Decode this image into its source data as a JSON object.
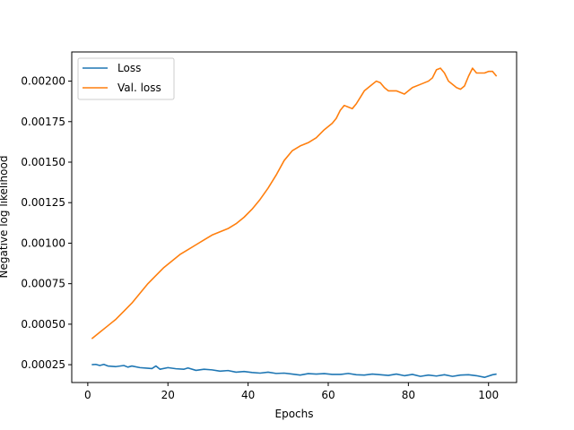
{
  "chart_data": {
    "type": "line",
    "title": "",
    "xlabel": "Epochs",
    "ylabel": "Negative log likelihood",
    "xlim": [
      -4,
      107
    ],
    "ylim": [
      0.00014,
      0.00218
    ],
    "xticks": [
      0,
      20,
      40,
      60,
      80,
      100
    ],
    "xtick_labels": [
      "0",
      "20",
      "40",
      "60",
      "80",
      "100"
    ],
    "yticks": [
      0.00025,
      0.0005,
      0.00075,
      0.001,
      0.00125,
      0.0015,
      0.00175,
      0.002
    ],
    "ytick_labels": [
      "0.00025",
      "0.00050",
      "0.00075",
      "0.00100",
      "0.00125",
      "0.00150",
      "0.00175",
      "0.00200"
    ],
    "grid": false,
    "legend": "top-left",
    "series": [
      {
        "name": "Loss",
        "color": "#1f77b4",
        "points": [
          [
            1,
            0.00025
          ],
          [
            2,
            0.000252
          ],
          [
            3,
            0.000245
          ],
          [
            4,
            0.000252
          ],
          [
            5,
            0.000242
          ],
          [
            7,
            0.000238
          ],
          [
            9,
            0.000245
          ],
          [
            10,
            0.000235
          ],
          [
            11,
            0.000242
          ],
          [
            13,
            0.000232
          ],
          [
            15,
            0.000228
          ],
          [
            16,
            0.000226
          ],
          [
            17,
            0.000242
          ],
          [
            18,
            0.000222
          ],
          [
            20,
            0.000232
          ],
          [
            22,
            0.000225
          ],
          [
            24,
            0.000222
          ],
          [
            25,
            0.00023
          ],
          [
            27,
            0.000215
          ],
          [
            29,
            0.000222
          ],
          [
            31,
            0.000218
          ],
          [
            33,
            0.00021
          ],
          [
            35,
            0.000214
          ],
          [
            37,
            0.000204
          ],
          [
            39,
            0.000208
          ],
          [
            41,
            0.000202
          ],
          [
            43,
            0.000198
          ],
          [
            45,
            0.000204
          ],
          [
            47,
            0.000196
          ],
          [
            49,
            0.000198
          ],
          [
            51,
            0.000192
          ],
          [
            53,
            0.000186
          ],
          [
            55,
            0.000195
          ],
          [
            57,
            0.000192
          ],
          [
            59,
            0.000195
          ],
          [
            61,
            0.00019
          ],
          [
            63,
            0.00019
          ],
          [
            65,
            0.000196
          ],
          [
            67,
            0.000188
          ],
          [
            69,
            0.000186
          ],
          [
            71,
            0.000192
          ],
          [
            73,
            0.000188
          ],
          [
            75,
            0.000184
          ],
          [
            77,
            0.000192
          ],
          [
            79,
            0.000182
          ],
          [
            81,
            0.00019
          ],
          [
            83,
            0.000178
          ],
          [
            85,
            0.000186
          ],
          [
            87,
            0.00018
          ],
          [
            89,
            0.000188
          ],
          [
            91,
            0.000178
          ],
          [
            93,
            0.000186
          ],
          [
            95,
            0.000188
          ],
          [
            97,
            0.000182
          ],
          [
            99,
            0.000172
          ],
          [
            101,
            0.000188
          ],
          [
            102,
            0.000192
          ]
        ]
      },
      {
        "name": "Val. loss",
        "color": "#ff7f0e",
        "points": [
          [
            1,
            0.00041
          ],
          [
            3,
            0.00045
          ],
          [
            5,
            0.00049
          ],
          [
            7,
            0.00053
          ],
          [
            9,
            0.00058
          ],
          [
            11,
            0.00063
          ],
          [
            13,
            0.00069
          ],
          [
            15,
            0.00075
          ],
          [
            17,
            0.0008
          ],
          [
            19,
            0.00085
          ],
          [
            21,
            0.00089
          ],
          [
            23,
            0.00093
          ],
          [
            25,
            0.00096
          ],
          [
            27,
            0.00099
          ],
          [
            29,
            0.00102
          ],
          [
            31,
            0.00105
          ],
          [
            33,
            0.00107
          ],
          [
            35,
            0.00109
          ],
          [
            37,
            0.00112
          ],
          [
            39,
            0.00116
          ],
          [
            41,
            0.00121
          ],
          [
            43,
            0.00127
          ],
          [
            45,
            0.00134
          ],
          [
            47,
            0.00142
          ],
          [
            49,
            0.00151
          ],
          [
            51,
            0.00157
          ],
          [
            53,
            0.0016
          ],
          [
            55,
            0.00162
          ],
          [
            57,
            0.00165
          ],
          [
            59,
            0.0017
          ],
          [
            61,
            0.00174
          ],
          [
            62,
            0.00177
          ],
          [
            63,
            0.00182
          ],
          [
            64,
            0.00185
          ],
          [
            65,
            0.00184
          ],
          [
            66,
            0.00183
          ],
          [
            67,
            0.00186
          ],
          [
            68,
            0.0019
          ],
          [
            69,
            0.00194
          ],
          [
            70,
            0.00196
          ],
          [
            71,
            0.00198
          ],
          [
            72,
            0.002
          ],
          [
            73,
            0.00199
          ],
          [
            74,
            0.00196
          ],
          [
            75,
            0.00194
          ],
          [
            77,
            0.00194
          ],
          [
            79,
            0.00192
          ],
          [
            81,
            0.00196
          ],
          [
            83,
            0.00198
          ],
          [
            85,
            0.002
          ],
          [
            86,
            0.00202
          ],
          [
            87,
            0.00207
          ],
          [
            88,
            0.00208
          ],
          [
            89,
            0.00205
          ],
          [
            90,
            0.002
          ],
          [
            91,
            0.00198
          ],
          [
            92,
            0.00196
          ],
          [
            93,
            0.00195
          ],
          [
            94,
            0.00197
          ],
          [
            95,
            0.00203
          ],
          [
            96,
            0.00208
          ],
          [
            97,
            0.00205
          ],
          [
            98,
            0.00205
          ],
          [
            99,
            0.00205
          ],
          [
            100,
            0.00206
          ],
          [
            101,
            0.00206
          ],
          [
            102,
            0.00203
          ]
        ]
      }
    ]
  }
}
